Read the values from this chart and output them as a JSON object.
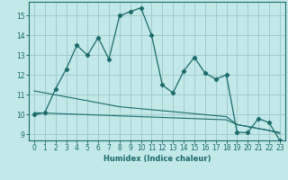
{
  "title": "",
  "xlabel": "Humidex (Indice chaleur)",
  "background_color": "#c2e8e8",
  "grid_color": "#a0cccc",
  "line_color": "#1a6b6b",
  "x_data": [
    0,
    1,
    2,
    3,
    4,
    5,
    6,
    7,
    8,
    9,
    10,
    11,
    12,
    13,
    14,
    15,
    16,
    17,
    18,
    19,
    20,
    21,
    22,
    23
  ],
  "y_main": [
    10.0,
    10.1,
    11.3,
    12.3,
    13.5,
    13.0,
    13.9,
    12.8,
    15.0,
    15.2,
    15.4,
    14.0,
    11.5,
    11.1,
    12.2,
    12.9,
    12.1,
    11.8,
    12.0,
    9.1,
    9.1,
    9.8,
    9.6,
    8.7
  ],
  "y_trend1": [
    11.2,
    11.1,
    11.0,
    10.9,
    10.8,
    10.7,
    10.6,
    10.5,
    10.4,
    10.35,
    10.3,
    10.25,
    10.2,
    10.15,
    10.1,
    10.05,
    10.0,
    9.95,
    9.9,
    9.5,
    9.4,
    9.3,
    9.2,
    9.1
  ],
  "y_trend2": [
    10.1,
    10.08,
    10.06,
    10.04,
    10.02,
    10.0,
    9.98,
    9.96,
    9.94,
    9.92,
    9.9,
    9.88,
    9.86,
    9.84,
    9.82,
    9.8,
    9.78,
    9.76,
    9.74,
    9.5,
    9.4,
    9.3,
    9.2,
    9.05
  ],
  "ylim": [
    8.7,
    15.7
  ],
  "yticks": [
    9,
    10,
    11,
    12,
    13,
    14,
    15
  ],
  "xlim": [
    -0.5,
    23.5
  ],
  "xticks": [
    0,
    1,
    2,
    3,
    4,
    5,
    6,
    7,
    8,
    9,
    10,
    11,
    12,
    13,
    14,
    15,
    16,
    17,
    18,
    19,
    20,
    21,
    22,
    23
  ]
}
